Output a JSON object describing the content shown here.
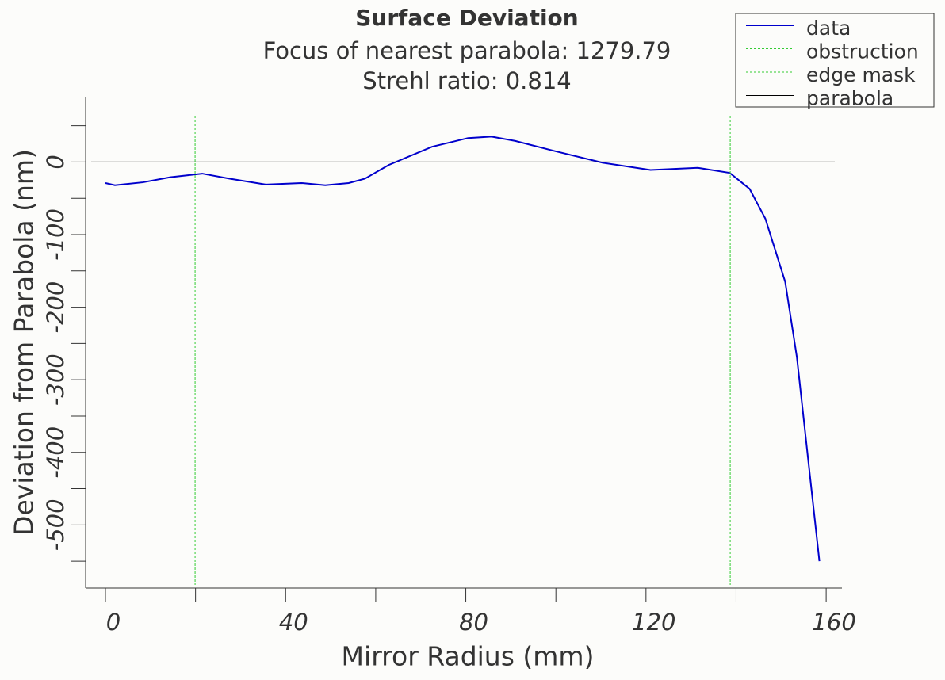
{
  "chart_data": {
    "type": "line",
    "title": "Surface Deviation",
    "subtitle": [
      "Focus of nearest parabola: 1279.79",
      "Strehl ratio: 0.814"
    ],
    "x_label": "Mirror Radius (mm)",
    "y_label": "Deviation from Parabola (nm)",
    "xlim": [
      -4.4,
      163.5
    ],
    "ylim": [
      -587,
      90
    ],
    "xticks": [
      0,
      40,
      80,
      120,
      160
    ],
    "xminor_ticks": [
      20,
      60,
      100,
      140
    ],
    "yticks": [
      0,
      -100,
      -200,
      -300,
      -400,
      -500
    ],
    "yminor_ticks": [
      50,
      -50,
      -150,
      -250,
      -350,
      -450,
      -550
    ],
    "series": [
      {
        "name": "data",
        "color": "#0000cc",
        "x": [
          0,
          2.1,
          8.3,
          14.4,
          21.5,
          27.6,
          35.6,
          43.5,
          48.8,
          54,
          57.6,
          62.9,
          72.5,
          80.5,
          85.7,
          91,
          99.8,
          110.4,
          121,
          131.5,
          138.6,
          143,
          146.5,
          150.9,
          153.5,
          156.2,
          158.5
        ],
        "values": [
          -29,
          -32,
          -28,
          -21,
          -16,
          -23,
          -31,
          -29,
          -32,
          -29,
          -23,
          -4,
          21,
          33,
          35,
          29,
          15,
          -1,
          -11,
          -8,
          -15,
          -37,
          -78,
          -165,
          -269,
          -421,
          -550
        ]
      },
      {
        "name": "obstruction",
        "color": "#33cc33",
        "x": [
          19.9
        ]
      },
      {
        "name": "edge mask",
        "color": "#33cc33",
        "x": [
          138.7
        ]
      },
      {
        "name": "parabola",
        "color": "#000000",
        "values": [
          0
        ]
      }
    ],
    "legend": "upper right"
  }
}
